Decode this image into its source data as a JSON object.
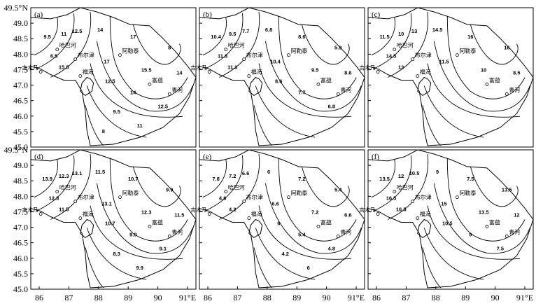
{
  "y_axis": {
    "unit": "N",
    "ticks": [
      "49.5°N",
      "49.0",
      "48.5",
      "48.0",
      "47.5",
      "47.0",
      "46.5",
      "46.0",
      "45.5",
      "45.0"
    ]
  },
  "x_axis": {
    "unit": "E",
    "ticks": [
      "86",
      "87",
      "88",
      "89",
      "90",
      "91°E"
    ]
  },
  "panels": [
    {
      "label": "(a)",
      "stations": [
        "哈巴河",
        "布尔津",
        "阿勒泰",
        "吉木乃",
        "福海",
        "富蕴",
        "青河"
      ],
      "contour_labels": [
        "9.5",
        "11",
        "12.5",
        "14",
        "17",
        "8",
        "6.5",
        "15.5",
        "17",
        "15.5",
        "14",
        "12.5",
        "14",
        "12.5",
        "9.5",
        "11",
        "8"
      ]
    },
    {
      "label": "(b)",
      "stations": [
        "哈巴河",
        "布尔津",
        "阿勒泰",
        "吉木乃",
        "福海",
        "富蕴",
        "青河"
      ],
      "contour_labels": [
        "10.4",
        "9.5",
        "7.7",
        "6.8",
        "8.6",
        "5.9",
        "11.3",
        "11.3",
        "10.4",
        "9.5",
        "8.6",
        "8.6",
        "7.7",
        "6.8"
      ]
    },
    {
      "label": "(c)",
      "stations": [
        "哈巴河",
        "布尔津",
        "阿勒泰",
        "吉木乃",
        "福海",
        "富蕴",
        "青河"
      ],
      "contour_labels": [
        "11.5",
        "10",
        "13",
        "14.5",
        "16",
        "16",
        "14.5",
        "13",
        "11.5",
        "10",
        "8.5"
      ]
    },
    {
      "label": "(d)",
      "stations": [
        "哈巴河",
        "布尔津",
        "阿勒泰",
        "吉木乃",
        "福海",
        "富蕴",
        "青河"
      ],
      "contour_labels": [
        "13.9",
        "12.3",
        "13.1",
        "11.5",
        "10.7",
        "9.9",
        "12.3",
        "11.5",
        "13.1",
        "12.3",
        "11.5",
        "10.7",
        "9.9",
        "9.1",
        "8.3",
        "9.9"
      ]
    },
    {
      "label": "(e)",
      "stations": [
        "哈巴河",
        "布尔津",
        "阿勒泰",
        "吉木乃",
        "福海",
        "富蕴",
        "青河"
      ],
      "contour_labels": [
        "7.8",
        "7.2",
        "6.6",
        "6",
        "7.2",
        "5.4",
        "4.8",
        "4.2",
        "6.6",
        "7.2",
        "6.6",
        "6",
        "5.4",
        "4.8",
        "4.2",
        "6"
      ]
    },
    {
      "label": "(f)",
      "stations": [
        "哈巴河",
        "布尔津",
        "阿勒泰",
        "吉木乃",
        "福海",
        "富蕴",
        "青河"
      ],
      "contour_labels": [
        "13.5",
        "12",
        "10.5",
        "9",
        "7.5",
        "13.5",
        "16.5",
        "16.5",
        "15",
        "13.5",
        "12",
        "10.5",
        "9",
        "7.5"
      ]
    }
  ]
}
